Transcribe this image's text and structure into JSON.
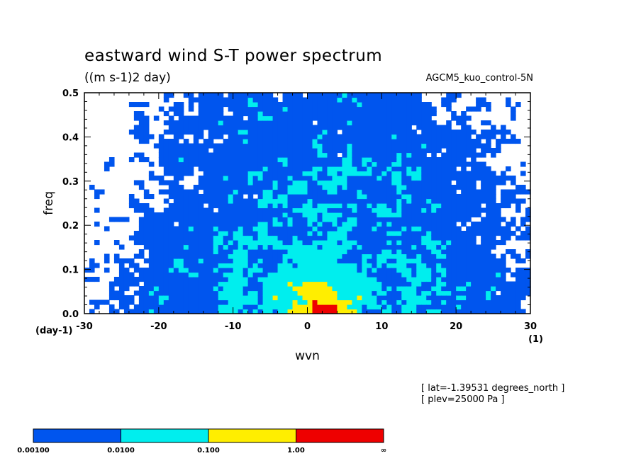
{
  "chart_data": {
    "type": "heatmap",
    "title": "eastward wind S-T power spectrum",
    "subtitle": "((m s-1)2 day)",
    "annotation": "AGCM5_kuo_control-5N",
    "xlabel": "wvn",
    "ylabel": "freq",
    "x_unit": "(1)",
    "y_unit": "(day-1)",
    "xlim": [
      -30,
      30
    ],
    "ylim": [
      0,
      0.5
    ],
    "x_ticks": [
      "-30",
      "-20",
      "-10",
      "0",
      "10",
      "20",
      "30"
    ],
    "y_ticks": [
      "0.0",
      "0.1",
      "0.2",
      "0.3",
      "0.4",
      "0.5"
    ],
    "grid": false,
    "levels": [
      0.001,
      0.01,
      0.1,
      1.0
    ],
    "level_colors": [
      "#ffffff",
      "#0055ee",
      "#00eeee",
      "#ffee00",
      "#ee0000"
    ],
    "colorbar_labels": [
      "0.00100",
      "0.0100",
      "0.100",
      "1.00",
      "∞"
    ],
    "peak": {
      "x": 2,
      "y": 0.03
    },
    "footer": [
      "[ lat=-1.39531 degrees_north ]",
      "[ plev=25000 Pa ]"
    ]
  }
}
